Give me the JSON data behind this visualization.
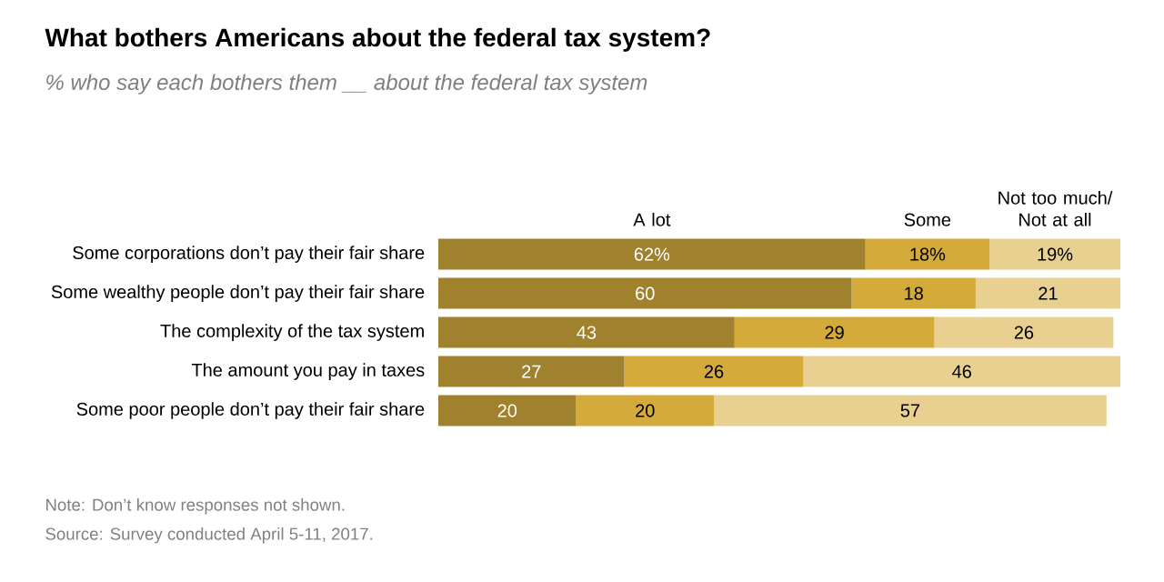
{
  "chart_data": {
    "type": "bar",
    "orientation": "horizontal",
    "stacked": true,
    "title": "What bothers Americans about the federal tax system?",
    "subtitle": "% who say each bothers them __ about the federal tax system",
    "categories": [
      "Some corporations don’t pay their fair share",
      "Some wealthy people don’t pay their fair share",
      "The complexity of the tax system",
      "The amount you pay in taxes",
      "Some poor people don’t pay their fair share"
    ],
    "series": [
      {
        "name": "A lot",
        "color": "#a0822e",
        "values": [
          62,
          60,
          43,
          27,
          20
        ],
        "value_labels": [
          "62%",
          "60",
          "43",
          "27",
          "20"
        ]
      },
      {
        "name": "Some",
        "color": "#d4aa3a",
        "values": [
          18,
          18,
          29,
          26,
          20
        ],
        "value_labels": [
          "18%",
          "18",
          "29",
          "26",
          "20"
        ]
      },
      {
        "name": "Not too much/ Not at all",
        "color": "#e8d190",
        "values": [
          19,
          21,
          26,
          46,
          57
        ],
        "value_labels": [
          "19%",
          "21",
          "26",
          "46",
          "57"
        ]
      }
    ],
    "annotations": [
      "Note: Don’t know responses not shown.",
      "Source: Survey conducted April 5-11, 2017."
    ]
  }
}
